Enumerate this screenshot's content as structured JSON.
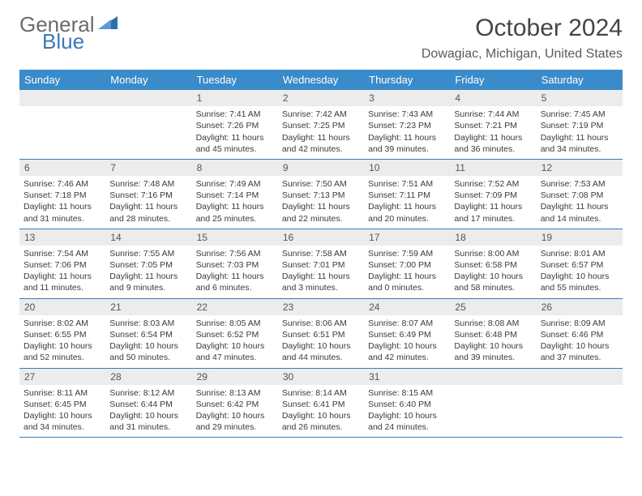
{
  "logo": {
    "general": "General",
    "blue": "Blue"
  },
  "title": "October 2024",
  "location": "Dowagiac, Michigan, United States",
  "day_names": [
    "Sunday",
    "Monday",
    "Tuesday",
    "Wednesday",
    "Thursday",
    "Friday",
    "Saturday"
  ],
  "colors": {
    "header_bg": "#3a8bc9",
    "header_text": "#ffffff",
    "daynum_bg": "#ececec",
    "rule": "#3a7ab8",
    "logo_blue": "#3a7ab8",
    "logo_gray": "#6b6b6b"
  },
  "weeks": [
    [
      null,
      null,
      {
        "n": "1",
        "sr": "7:41 AM",
        "ss": "7:26 PM",
        "dl": "11 hours and 45 minutes."
      },
      {
        "n": "2",
        "sr": "7:42 AM",
        "ss": "7:25 PM",
        "dl": "11 hours and 42 minutes."
      },
      {
        "n": "3",
        "sr": "7:43 AM",
        "ss": "7:23 PM",
        "dl": "11 hours and 39 minutes."
      },
      {
        "n": "4",
        "sr": "7:44 AM",
        "ss": "7:21 PM",
        "dl": "11 hours and 36 minutes."
      },
      {
        "n": "5",
        "sr": "7:45 AM",
        "ss": "7:19 PM",
        "dl": "11 hours and 34 minutes."
      }
    ],
    [
      {
        "n": "6",
        "sr": "7:46 AM",
        "ss": "7:18 PM",
        "dl": "11 hours and 31 minutes."
      },
      {
        "n": "7",
        "sr": "7:48 AM",
        "ss": "7:16 PM",
        "dl": "11 hours and 28 minutes."
      },
      {
        "n": "8",
        "sr": "7:49 AM",
        "ss": "7:14 PM",
        "dl": "11 hours and 25 minutes."
      },
      {
        "n": "9",
        "sr": "7:50 AM",
        "ss": "7:13 PM",
        "dl": "11 hours and 22 minutes."
      },
      {
        "n": "10",
        "sr": "7:51 AM",
        "ss": "7:11 PM",
        "dl": "11 hours and 20 minutes."
      },
      {
        "n": "11",
        "sr": "7:52 AM",
        "ss": "7:09 PM",
        "dl": "11 hours and 17 minutes."
      },
      {
        "n": "12",
        "sr": "7:53 AM",
        "ss": "7:08 PM",
        "dl": "11 hours and 14 minutes."
      }
    ],
    [
      {
        "n": "13",
        "sr": "7:54 AM",
        "ss": "7:06 PM",
        "dl": "11 hours and 11 minutes."
      },
      {
        "n": "14",
        "sr": "7:55 AM",
        "ss": "7:05 PM",
        "dl": "11 hours and 9 minutes."
      },
      {
        "n": "15",
        "sr": "7:56 AM",
        "ss": "7:03 PM",
        "dl": "11 hours and 6 minutes."
      },
      {
        "n": "16",
        "sr": "7:58 AM",
        "ss": "7:01 PM",
        "dl": "11 hours and 3 minutes."
      },
      {
        "n": "17",
        "sr": "7:59 AM",
        "ss": "7:00 PM",
        "dl": "11 hours and 0 minutes."
      },
      {
        "n": "18",
        "sr": "8:00 AM",
        "ss": "6:58 PM",
        "dl": "10 hours and 58 minutes."
      },
      {
        "n": "19",
        "sr": "8:01 AM",
        "ss": "6:57 PM",
        "dl": "10 hours and 55 minutes."
      }
    ],
    [
      {
        "n": "20",
        "sr": "8:02 AM",
        "ss": "6:55 PM",
        "dl": "10 hours and 52 minutes."
      },
      {
        "n": "21",
        "sr": "8:03 AM",
        "ss": "6:54 PM",
        "dl": "10 hours and 50 minutes."
      },
      {
        "n": "22",
        "sr": "8:05 AM",
        "ss": "6:52 PM",
        "dl": "10 hours and 47 minutes."
      },
      {
        "n": "23",
        "sr": "8:06 AM",
        "ss": "6:51 PM",
        "dl": "10 hours and 44 minutes."
      },
      {
        "n": "24",
        "sr": "8:07 AM",
        "ss": "6:49 PM",
        "dl": "10 hours and 42 minutes."
      },
      {
        "n": "25",
        "sr": "8:08 AM",
        "ss": "6:48 PM",
        "dl": "10 hours and 39 minutes."
      },
      {
        "n": "26",
        "sr": "8:09 AM",
        "ss": "6:46 PM",
        "dl": "10 hours and 37 minutes."
      }
    ],
    [
      {
        "n": "27",
        "sr": "8:11 AM",
        "ss": "6:45 PM",
        "dl": "10 hours and 34 minutes."
      },
      {
        "n": "28",
        "sr": "8:12 AM",
        "ss": "6:44 PM",
        "dl": "10 hours and 31 minutes."
      },
      {
        "n": "29",
        "sr": "8:13 AM",
        "ss": "6:42 PM",
        "dl": "10 hours and 29 minutes."
      },
      {
        "n": "30",
        "sr": "8:14 AM",
        "ss": "6:41 PM",
        "dl": "10 hours and 26 minutes."
      },
      {
        "n": "31",
        "sr": "8:15 AM",
        "ss": "6:40 PM",
        "dl": "10 hours and 24 minutes."
      },
      null,
      null
    ]
  ],
  "labels": {
    "sunrise": "Sunrise:",
    "sunset": "Sunset:",
    "daylight": "Daylight:"
  }
}
